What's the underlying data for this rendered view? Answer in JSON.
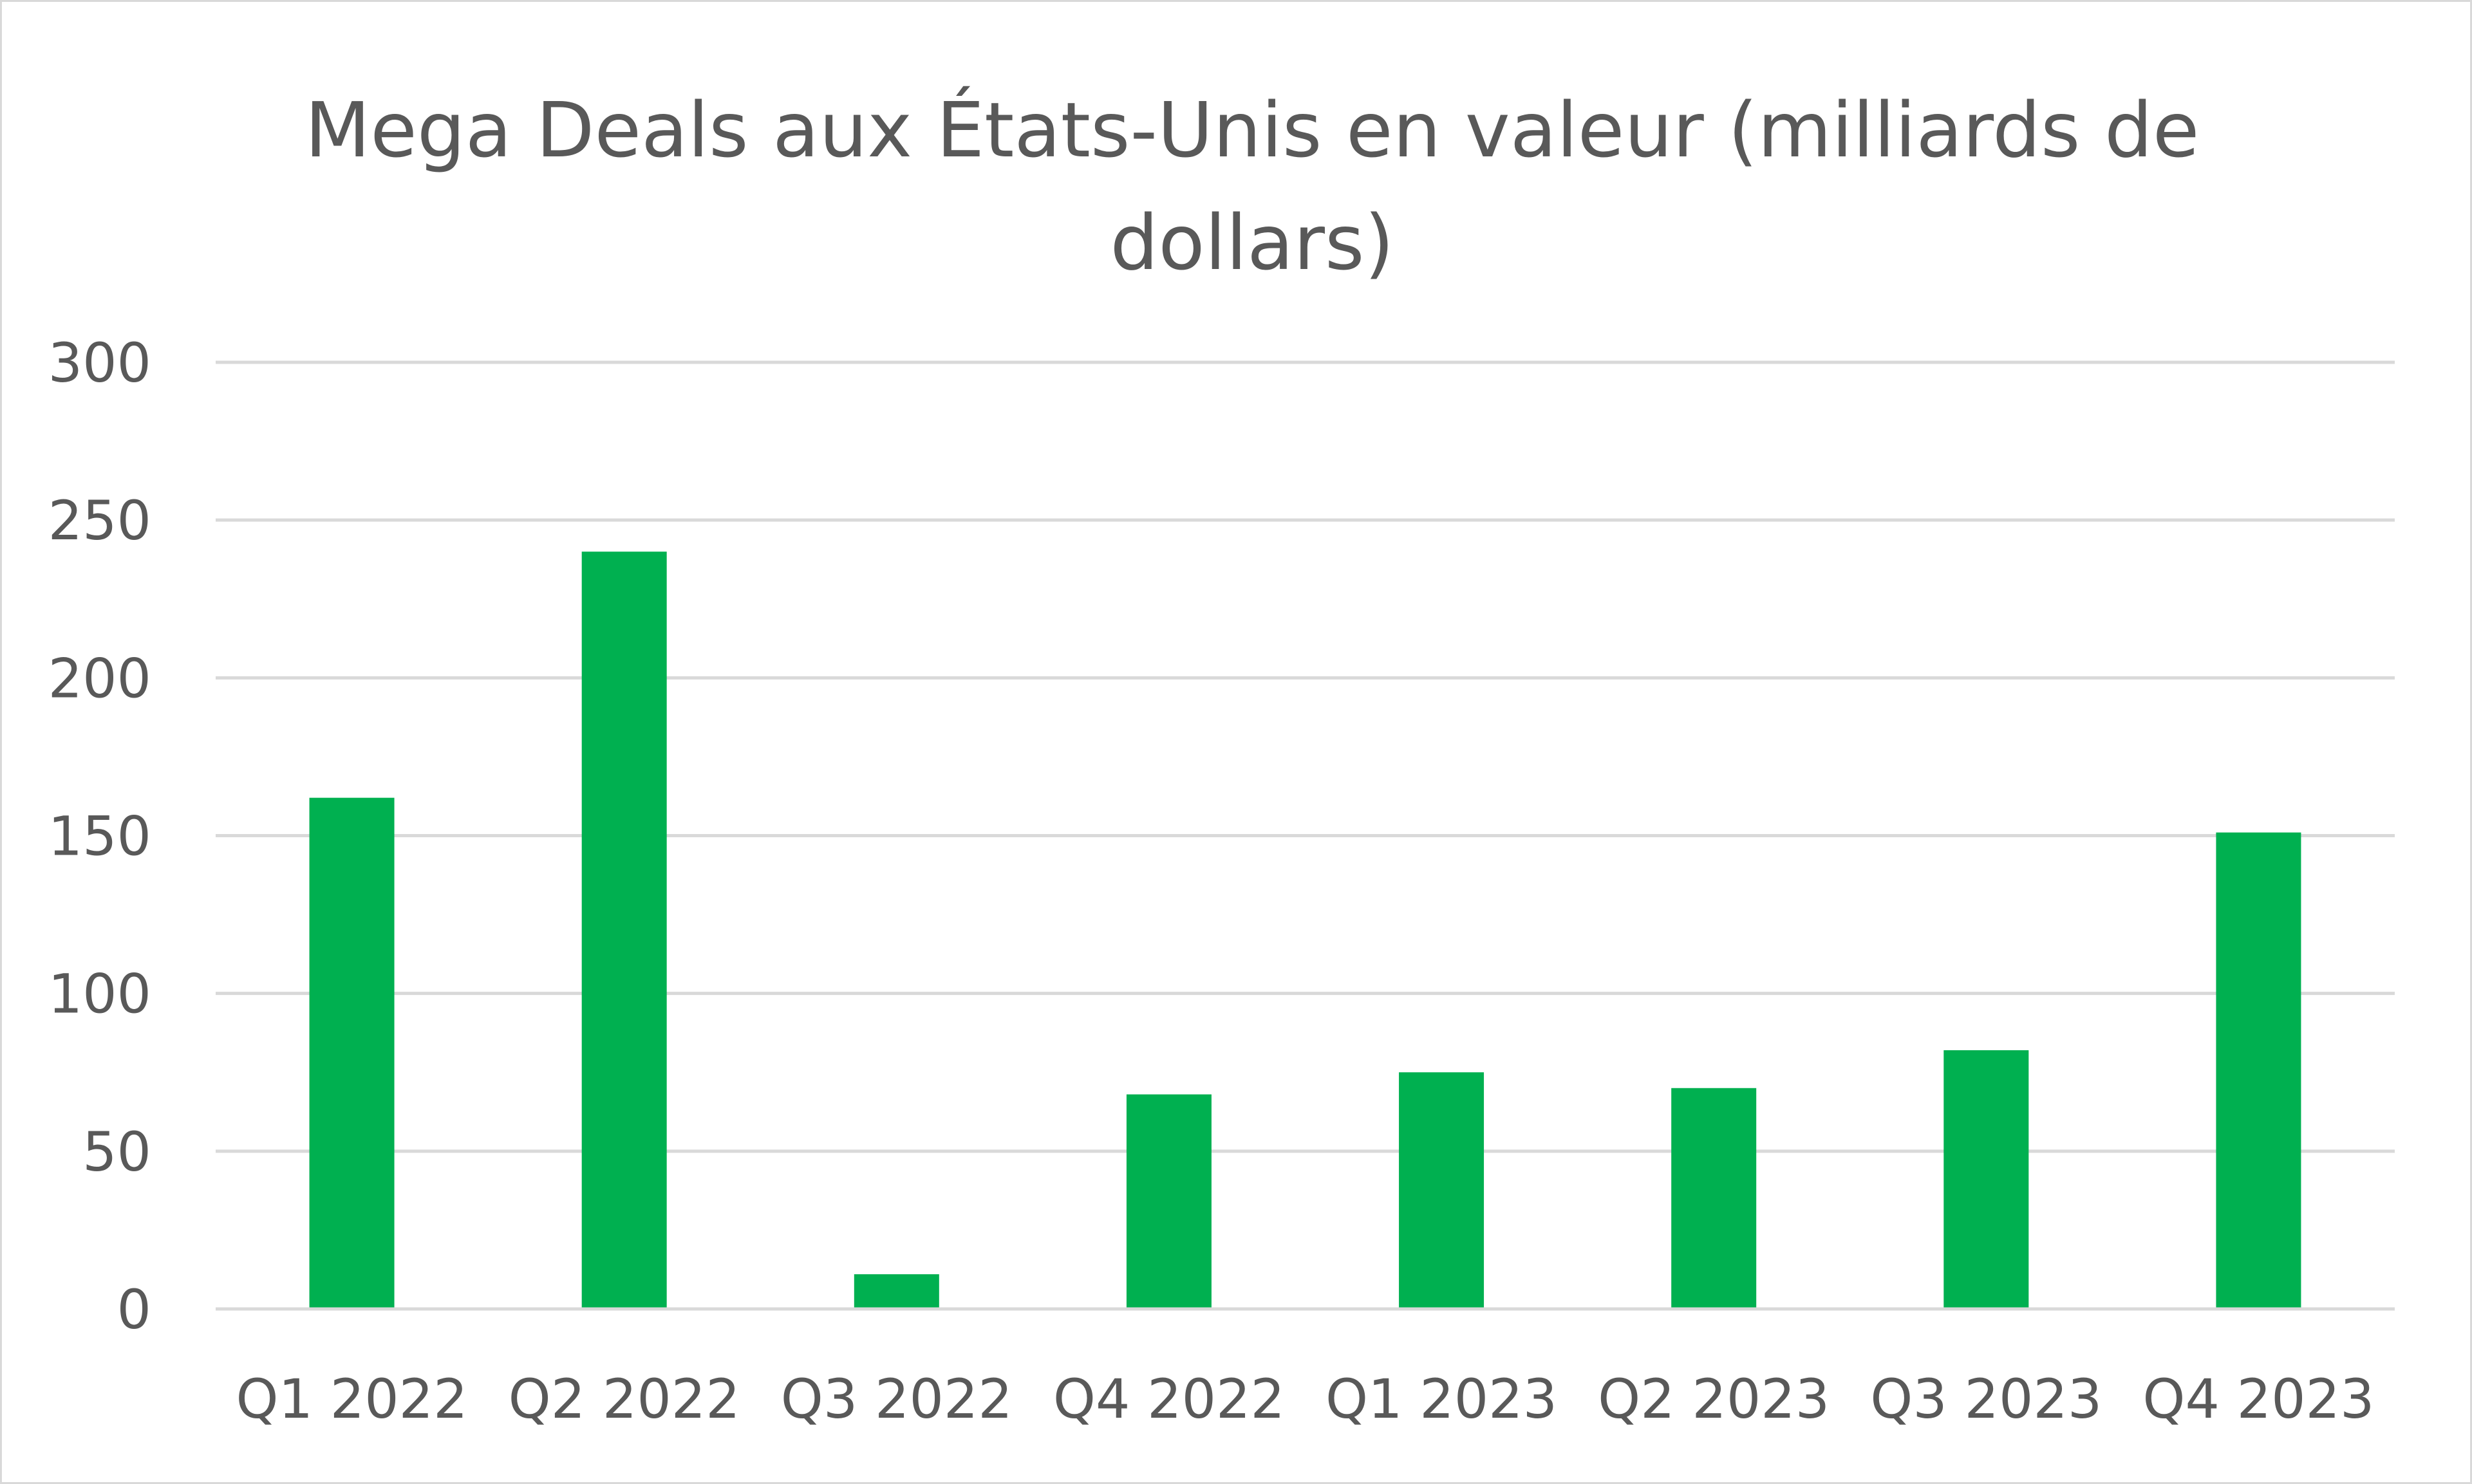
{
  "chart_data": {
    "type": "bar",
    "title": "Mega Deals aux États-Unis en valeur (milliards de dollars)",
    "title_lines": [
      "Mega Deals aux États-Unis en valeur (milliards de",
      "dollars)"
    ],
    "categories": [
      "Q1 2022",
      "Q2 2022",
      "Q3 2022",
      "Q4 2022",
      "Q1 2023",
      "Q2 2023",
      "Q3 2023",
      "Q4 2023"
    ],
    "values": [
      162,
      240,
      11,
      68,
      75,
      70,
      82,
      151
    ],
    "ylim": [
      0,
      300
    ],
    "yticks": [
      0,
      50,
      100,
      150,
      200,
      250,
      300
    ],
    "xlabel": "",
    "ylabel": "",
    "grid": true,
    "legend": "none",
    "colors": {
      "bar": "#00b050",
      "grid": "#d9d9d9",
      "text": "#595959",
      "border": "#d9d9d9"
    }
  }
}
